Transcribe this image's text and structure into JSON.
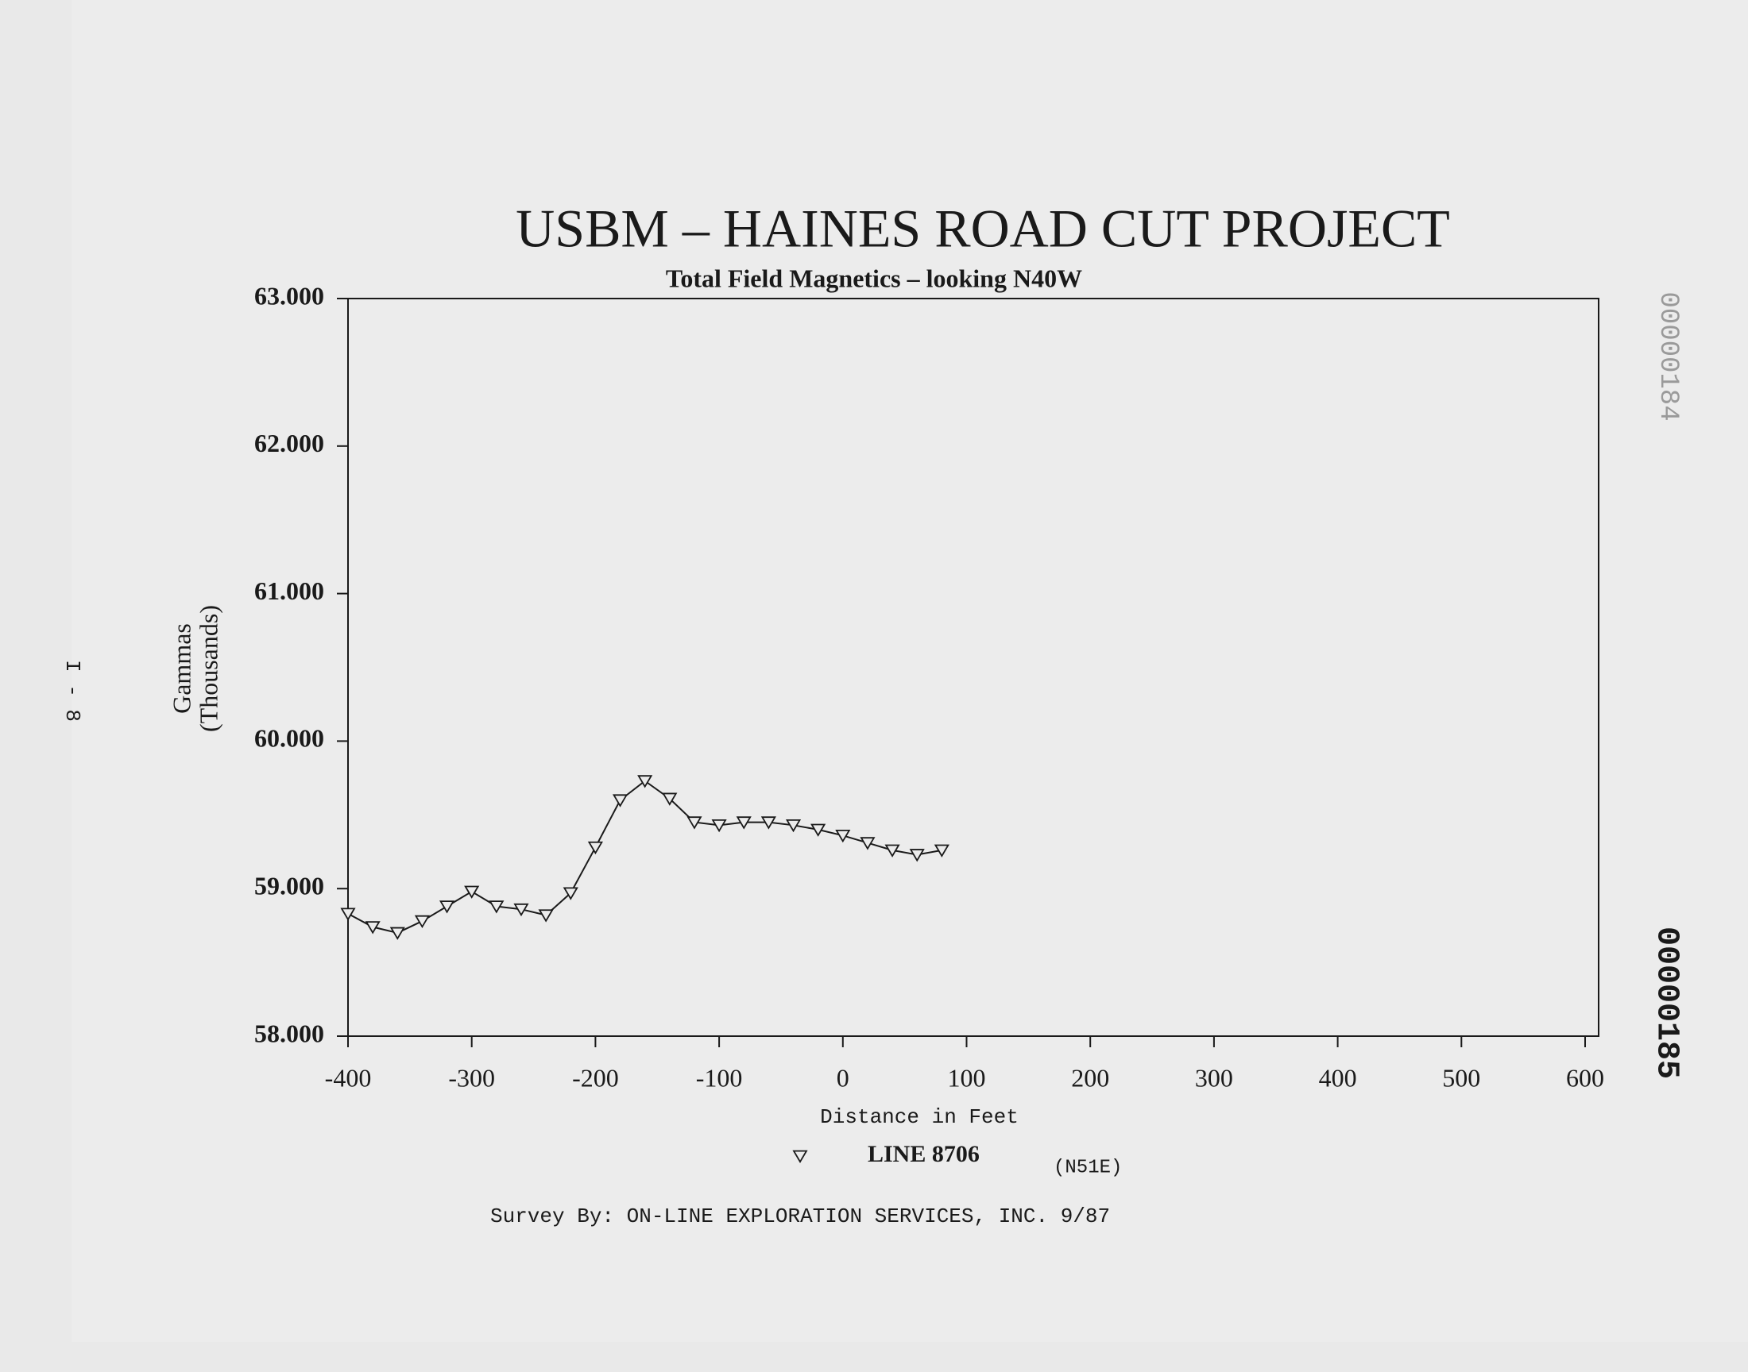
{
  "chart_data": {
    "type": "line",
    "title": "USBM – HAINES ROAD CUT PROJECT",
    "subtitle": "Total Field Magnetics – looking N40W",
    "y_label": [
      "Gammas",
      "(Thousands)"
    ],
    "x_label": "Distance in Feet",
    "x": [
      -400,
      -380,
      -360,
      -340,
      -320,
      -300,
      -280,
      -260,
      -240,
      -220,
      -200,
      -180,
      -160,
      -140,
      -120,
      -100,
      -80,
      -60,
      -40,
      -20,
      0,
      20,
      40,
      60,
      80
    ],
    "series": [
      {
        "name": "LINE 8706",
        "note": "(N51E)",
        "color": "#1a1a1a",
        "values": [
          58.83,
          58.74,
          58.7,
          58.78,
          58.88,
          58.98,
          58.88,
          58.86,
          58.82,
          58.97,
          59.28,
          59.6,
          59.73,
          59.61,
          59.45,
          59.43,
          59.45,
          59.45,
          59.43,
          59.4,
          59.36,
          59.31,
          59.26,
          59.23,
          59.26
        ]
      }
    ],
    "xlim": [
      -400,
      600
    ],
    "xticks": [
      -400,
      -300,
      -200,
      -100,
      0,
      100,
      200,
      300,
      400,
      500,
      600
    ],
    "ylim": [
      58,
      63
    ],
    "yticks": [
      {
        "value": 58,
        "label": "58.000"
      },
      {
        "value": 59,
        "label": "59.000"
      },
      {
        "value": 60,
        "label": "60.000"
      },
      {
        "value": 61,
        "label": "61.000"
      },
      {
        "value": 62,
        "label": "62.000"
      },
      {
        "value": 63,
        "label": "63.000"
      }
    ],
    "footer": "Survey By:  ON-LINE EXPLORATION SERVICES, INC.  9/87",
    "page_marks": {
      "left": "I - 8",
      "right_top": "00000184",
      "right_bottom": "00000185"
    }
  }
}
